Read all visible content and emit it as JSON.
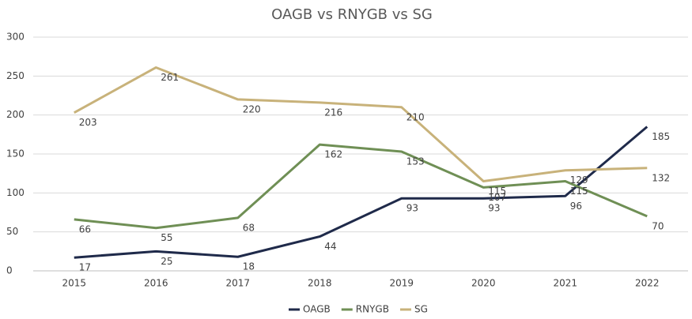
{
  "chart_data": {
    "type": "line",
    "title": "OAGB vs RNYGB vs SG",
    "categories": [
      "2015",
      "2016",
      "2017",
      "2018",
      "2019",
      "2020",
      "2021",
      "2022"
    ],
    "series": [
      {
        "name": "OAGB",
        "color": "#1f2a4a",
        "values": [
          17,
          25,
          18,
          44,
          93,
          93,
          96,
          185
        ]
      },
      {
        "name": "RNYGB",
        "color": "#6f8f55",
        "values": [
          66,
          55,
          68,
          162,
          153,
          107,
          115,
          70
        ]
      },
      {
        "name": "SG",
        "color": "#c8b27a",
        "values": [
          203,
          261,
          220,
          216,
          210,
          115,
          129,
          132
        ]
      }
    ],
    "ylim": [
      0,
      300
    ],
    "yticks": [
      0,
      50,
      100,
      150,
      200,
      250,
      300
    ],
    "grid": true,
    "legend": "bottom"
  }
}
